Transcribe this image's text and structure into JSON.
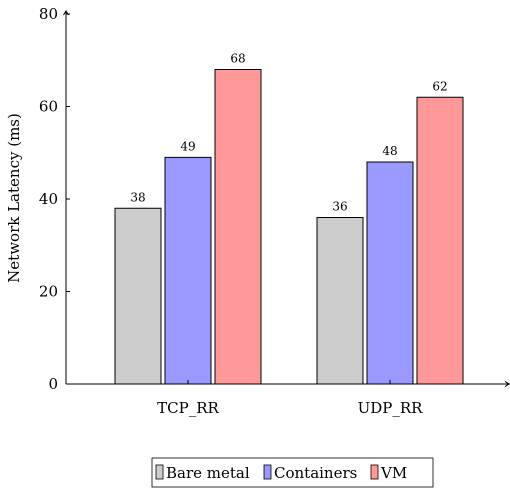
{
  "chart_data": {
    "type": "bar",
    "categories": [
      "TCP_RR",
      "UDP_RR"
    ],
    "series": [
      {
        "name": "Bare metal",
        "values": [
          38,
          36
        ],
        "color": "#cccccc"
      },
      {
        "name": "Containers",
        "values": [
          49,
          48
        ],
        "color": "#9999ff"
      },
      {
        "name": "VM",
        "values": [
          68,
          62
        ],
        "color": "#ff9999"
      }
    ],
    "title": "",
    "xlabel": "",
    "ylabel": "Network Latency (ms)",
    "ylim": [
      0,
      80
    ],
    "yticks": [
      0,
      20,
      40,
      60,
      80
    ],
    "grid": false,
    "legend_position": "bottom-center",
    "value_labels": true
  }
}
